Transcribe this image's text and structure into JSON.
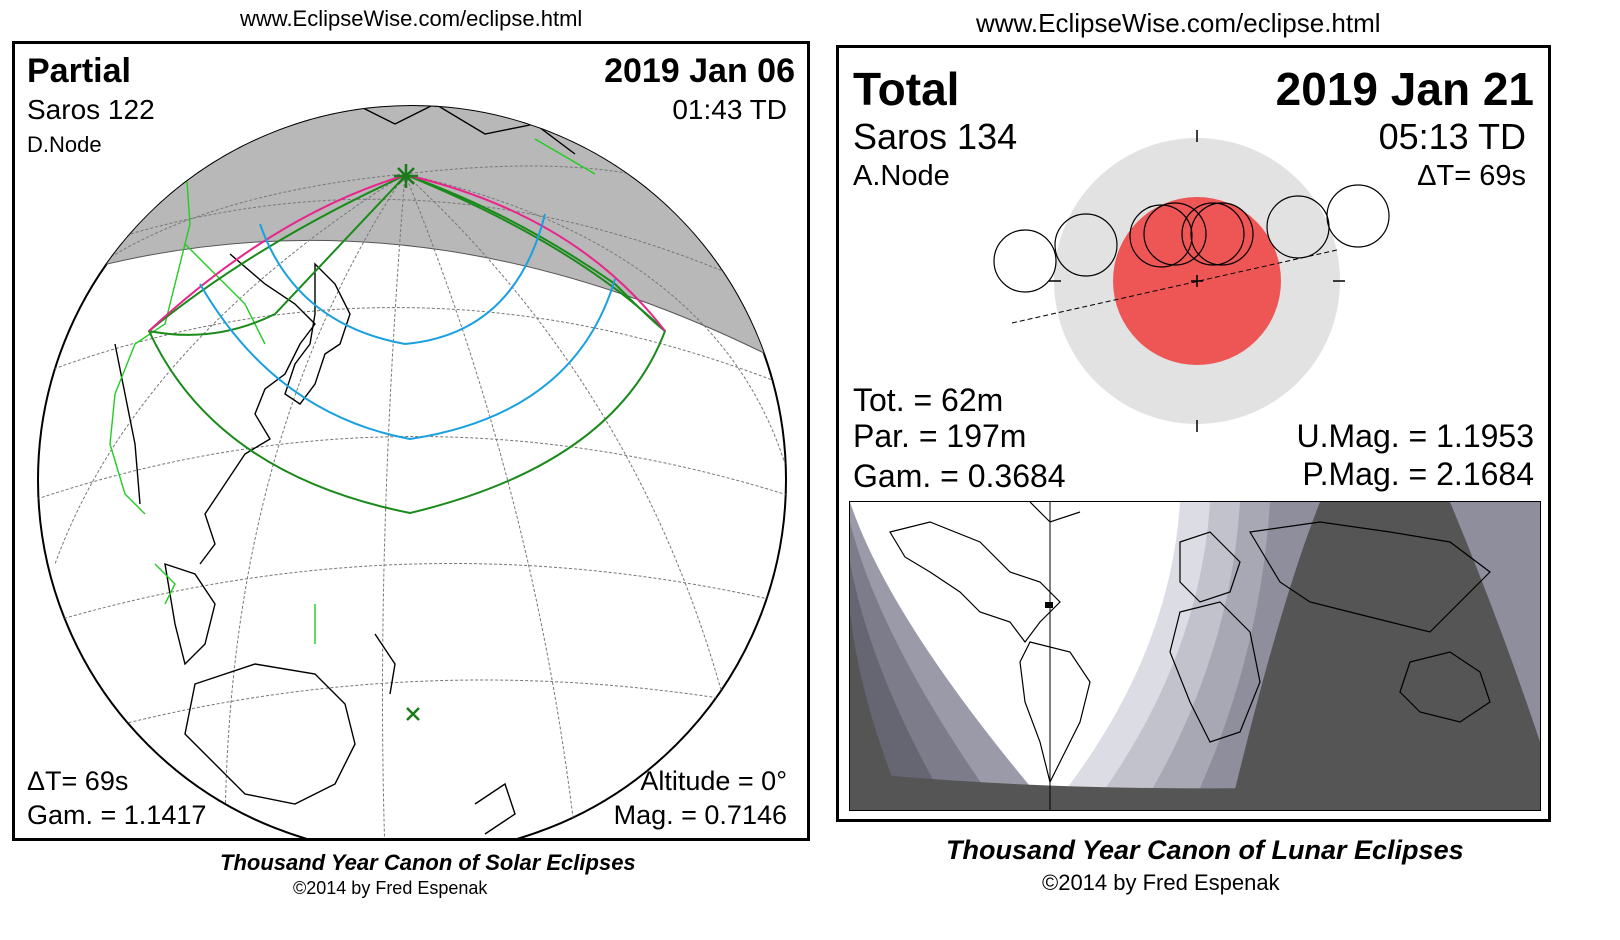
{
  "solar": {
    "url": "www.EclipseWise.com/eclipse.html",
    "type": "Partial",
    "date": "2019 Jan 06",
    "saros": "Saros 122",
    "time": "01:43 TD",
    "node": "D.Node",
    "delta_t": "ΔT=     69s",
    "gamma": "Gam. = 1.1417",
    "altitude": "Altitude =  0°",
    "magnitude": "Mag. = 0.7146",
    "footer_title": "Thousand Year Canon of Solar Eclipses",
    "footer_credit": "©2014 by Fred Espenak",
    "colors": {
      "night": "#b8b8b8",
      "path_outer": "#1a8a1a",
      "path_mid": "#e8258a",
      "path_inner": "#1aa0e0",
      "border": "#22cc22"
    }
  },
  "lunar": {
    "url": "www.EclipseWise.com/eclipse.html",
    "type": "Total",
    "date": "2019 Jan 21",
    "saros": "Saros 134",
    "time": "05:13 TD",
    "node": "A.Node",
    "delta_t": "ΔT=     69s",
    "totality": "Tot. =  62m",
    "partial": "Par. = 197m",
    "gamma": "Gam. = 0.3684",
    "umbral_mag": "U.Mag. = 1.1953",
    "penumbral_mag": "P.Mag. = 2.1684",
    "footer_title": "Thousand Year Canon of Lunar Eclipses",
    "footer_credit": "©2014 by Fred Espenak",
    "colors": {
      "penumbra": "#e2e2e2",
      "umbra": "#ee5555",
      "map_dark": "#555555",
      "map_shade": "#9a9aa8"
    }
  }
}
